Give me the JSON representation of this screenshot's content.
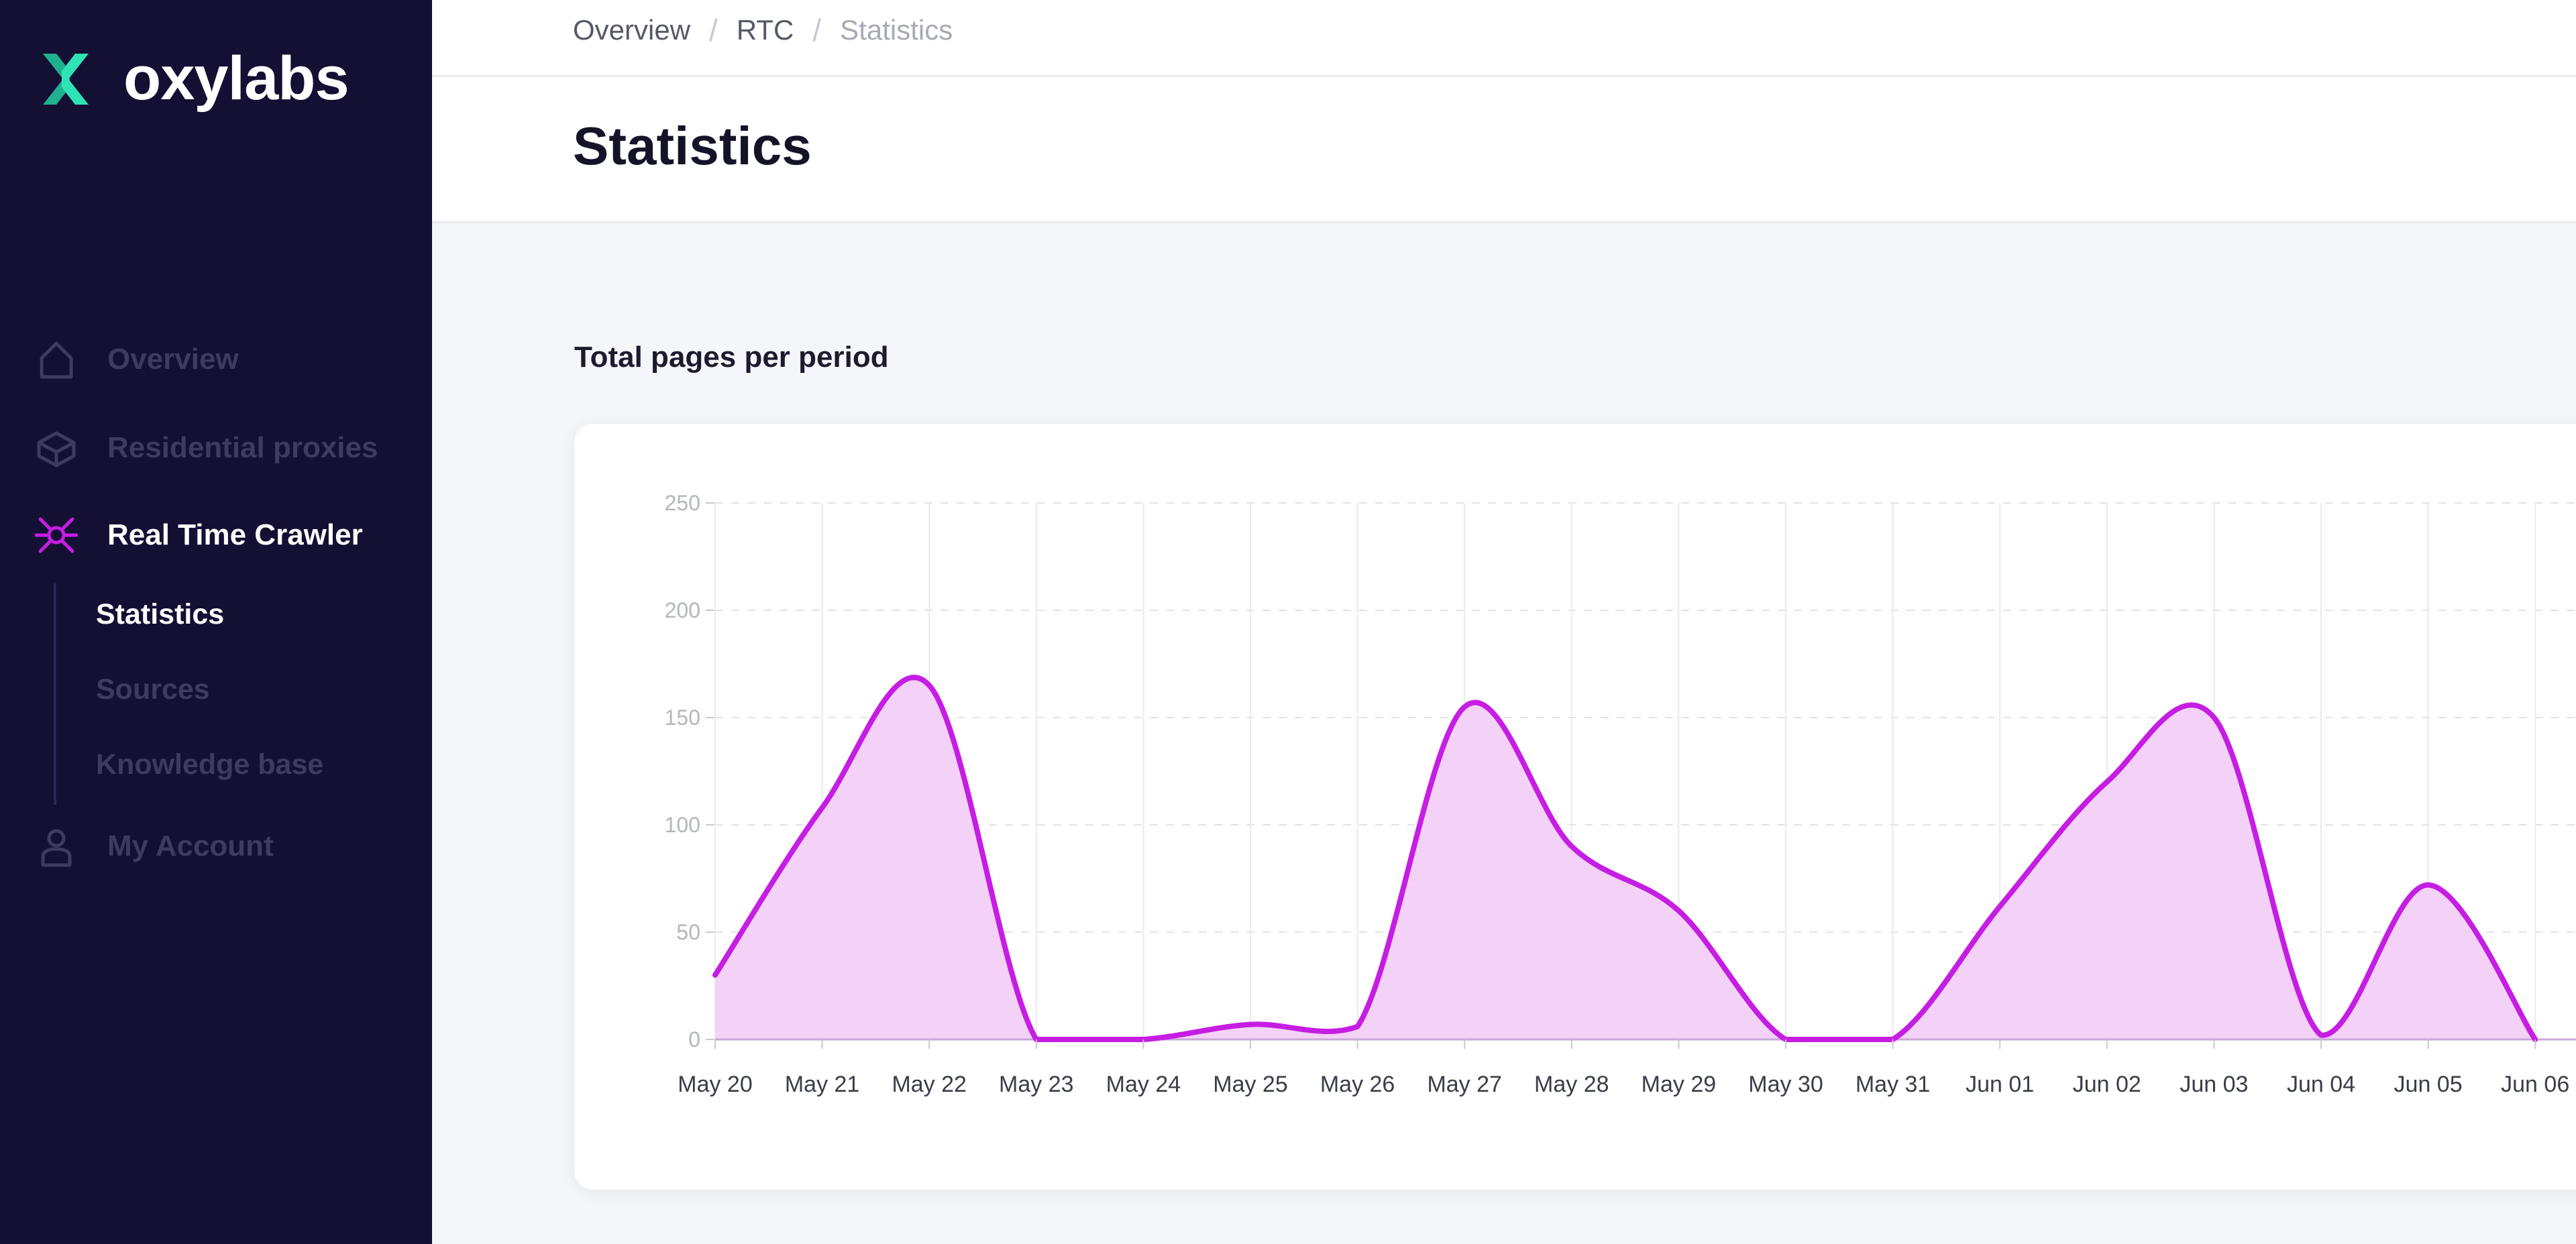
{
  "app": {
    "brand": "oxylabs",
    "accent_color": "#c61de3",
    "brand_color": "#23d5a8",
    "sidebar_bg": "#141034"
  },
  "sidebar": {
    "items": [
      {
        "label": "Overview",
        "icon": "home-icon",
        "active": false
      },
      {
        "label": "Residential proxies",
        "icon": "box-icon",
        "active": false
      },
      {
        "label": "Real Time Crawler",
        "icon": "crawler-icon",
        "active": true
      },
      {
        "label": "My Account",
        "icon": "user-icon",
        "active": false
      }
    ],
    "sub_items": [
      {
        "label": "Statistics",
        "active": true
      },
      {
        "label": "Sources",
        "active": false
      },
      {
        "label": "Knowledge base",
        "active": false
      }
    ]
  },
  "header": {
    "breadcrumb": [
      "Overview",
      "RTC",
      "Statistics"
    ],
    "title": "Statistics"
  },
  "main": {
    "section_label": "Total pages per period"
  },
  "chart_data": {
    "type": "area",
    "x": [
      "May 20",
      "May 21",
      "May 22",
      "May 23",
      "May 24",
      "May 25",
      "May 26",
      "May 27",
      "May 28",
      "May 29",
      "May 30",
      "May 31",
      "Jun 01",
      "Jun 02",
      "Jun 03",
      "Jun 04",
      "Jun 05",
      "Jun 06"
    ],
    "series": [
      {
        "values": [
          30,
          108,
          165,
          0,
          0,
          7,
          6,
          155,
          90,
          60,
          0,
          0,
          62,
          120,
          150,
          2,
          72,
          0
        ]
      }
    ],
    "yticks": [
      0,
      50,
      100,
      150,
      200,
      250
    ],
    "ylim": [
      0,
      250
    ],
    "grid": true,
    "line_color": "#c61de3",
    "fill_color": "#f4d2f8"
  }
}
